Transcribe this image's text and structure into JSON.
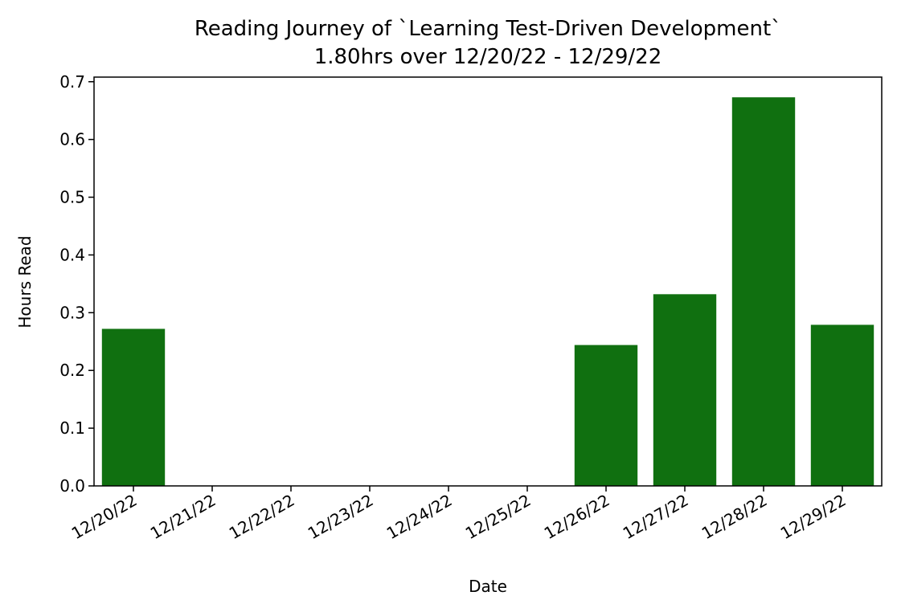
{
  "chart_data": {
    "type": "bar",
    "title": "Reading Journey of `Learning Test-Driven Development`",
    "subtitle": "1.80hrs over 12/20/22 - 12/29/22",
    "xlabel": "Date",
    "ylabel": "Hours Read",
    "categories": [
      "12/20/22",
      "12/21/22",
      "12/22/22",
      "12/23/22",
      "12/24/22",
      "12/25/22",
      "12/26/22",
      "12/27/22",
      "12/28/22",
      "12/29/22"
    ],
    "values": [
      0.272,
      0,
      0,
      0,
      0,
      0,
      0.244,
      0.332,
      0.673,
      0.279
    ],
    "ylim": [
      0,
      0.708
    ],
    "yticks": [
      0.0,
      0.1,
      0.2,
      0.3,
      0.4,
      0.5,
      0.6,
      0.7
    ],
    "ytick_labels": [
      "0.0",
      "0.1",
      "0.2",
      "0.3",
      "0.4",
      "0.5",
      "0.6",
      "0.7"
    ],
    "grid": false,
    "legend": "none",
    "bar_color": "#107010"
  }
}
